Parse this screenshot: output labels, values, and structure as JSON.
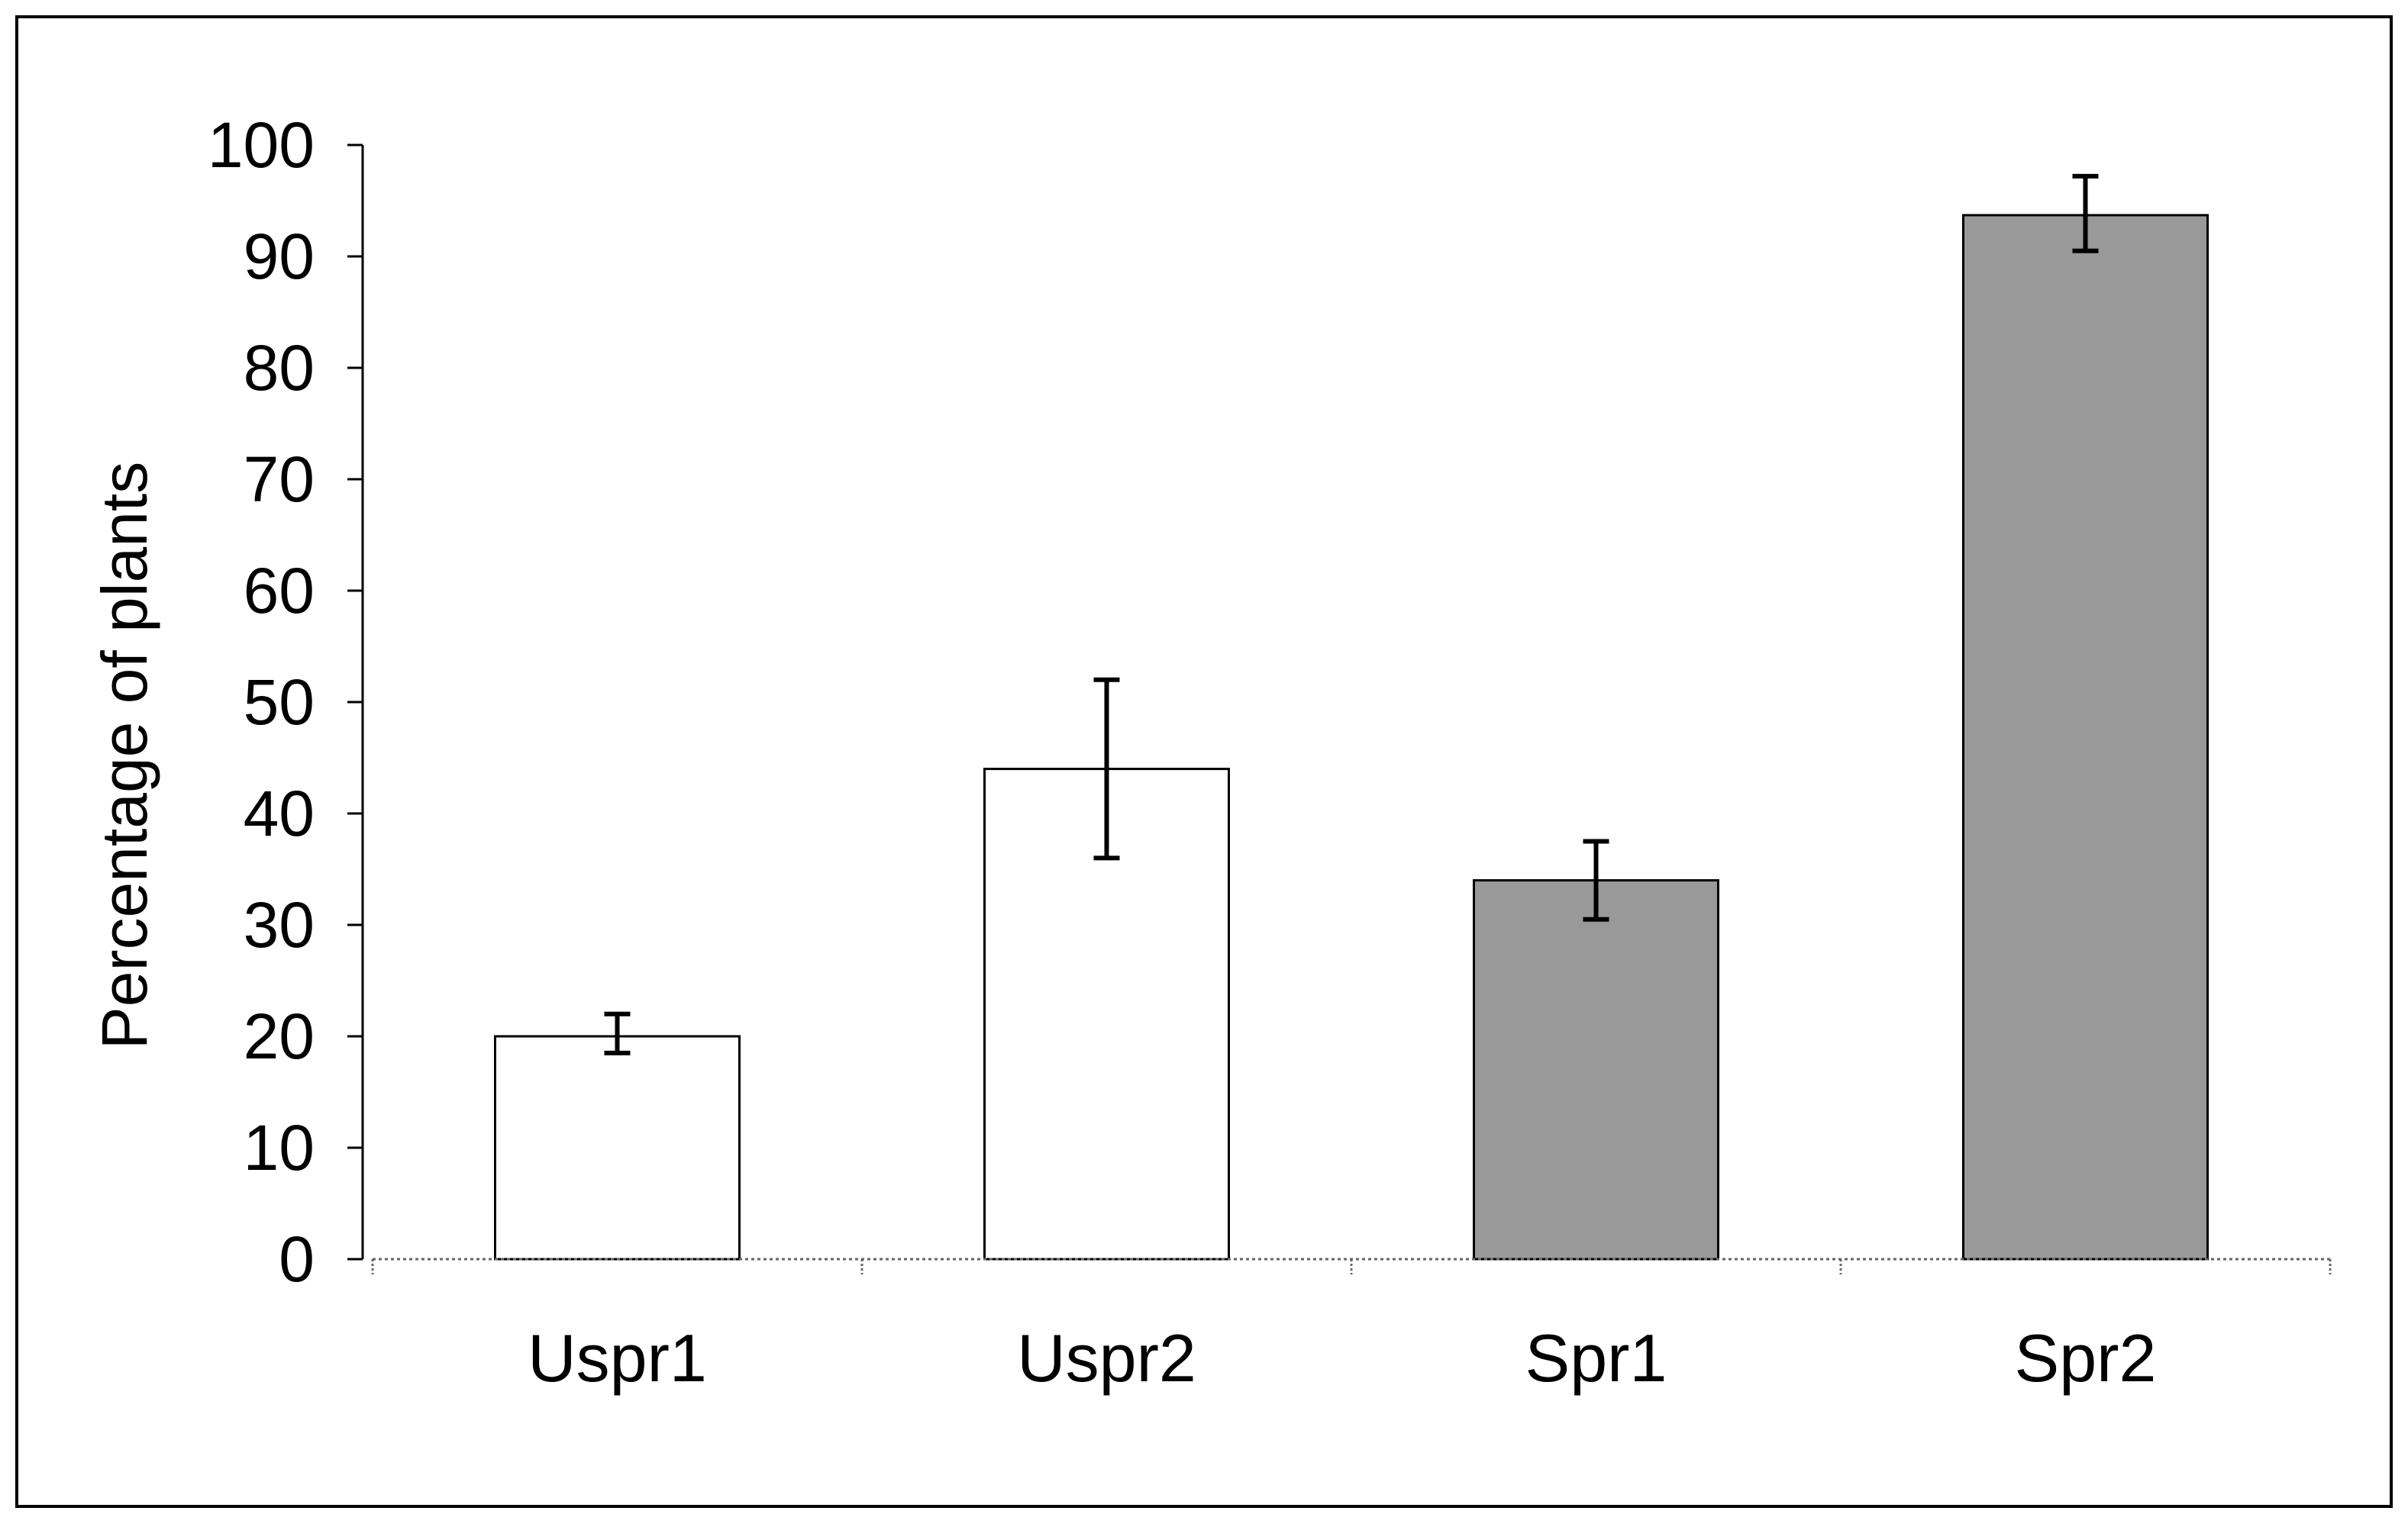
{
  "chart_data": {
    "type": "bar",
    "title": "",
    "xlabel": "",
    "ylabel": "Percentage of plants",
    "ylim": [
      0,
      100
    ],
    "yticks": [
      0,
      10,
      20,
      30,
      40,
      50,
      60,
      70,
      80,
      90,
      100
    ],
    "grid": false,
    "legend": "none",
    "categories": [
      "Uspr1",
      "Uspr2",
      "Spr1",
      "Spr2"
    ],
    "values": [
      20,
      44,
      34,
      93.7
    ],
    "error_low": [
      18.5,
      36,
      30.5,
      90.5
    ],
    "error_high": [
      22,
      52,
      37.5,
      97.2
    ],
    "bar_colors": [
      "#ffffff",
      "#ffffff",
      "#999999",
      "#999999"
    ],
    "bar_edge_color": "#000000"
  }
}
